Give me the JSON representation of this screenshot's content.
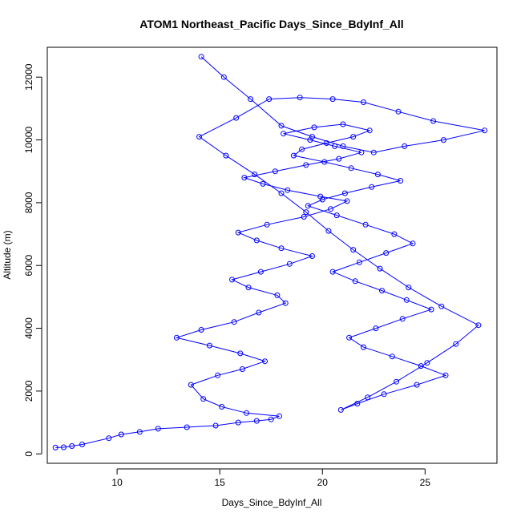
{
  "chart_data": {
    "type": "line",
    "title": "ATOM1 Northeast_Pacific Days_Since_BdyInf_All",
    "xlabel": "Days_Since_BdyInf_All",
    "ylabel": "Altitude (m)",
    "xlim": [
      6.6,
      28.5
    ],
    "ylim": [
      -300,
      12950
    ],
    "xticks": [
      10,
      15,
      20,
      25
    ],
    "yticks": [
      0,
      2000,
      4000,
      6000,
      8000,
      10000,
      12000
    ],
    "grid": false,
    "legend": "none",
    "marker": "open-circle",
    "color": "#0000ff",
    "series": [
      {
        "x": [
          7.0,
          7.4,
          7.8,
          8.3,
          9.6,
          10.2,
          11.1,
          12.0,
          13.4,
          14.8,
          15.9,
          16.8,
          17.5,
          17.9,
          16.3,
          15.1,
          14.2,
          13.6,
          14.9,
          16.1,
          17.2,
          16.0,
          14.5,
          12.9,
          14.1,
          15.7,
          16.9,
          18.2,
          17.8,
          16.4,
          15.6,
          17.0,
          18.4,
          19.5,
          18.0,
          16.8,
          15.9,
          17.3,
          19.1,
          20.4,
          21.2,
          19.9,
          18.3,
          17.1,
          16.2,
          17.7,
          19.2,
          20.8,
          21.9,
          20.6,
          19.4,
          18.1,
          19.6,
          21.0,
          22.3,
          21.5,
          20.2,
          19.0,
          18.6,
          20.1,
          21.4,
          22.7,
          23.8,
          22.4,
          21.1,
          20.0,
          19.3,
          20.7,
          22.1,
          23.5,
          24.4,
          23.1,
          21.8,
          20.5,
          21.6,
          22.9,
          24.1,
          25.3,
          23.9,
          22.6,
          21.3,
          22.0,
          23.4,
          24.8,
          26.0,
          24.6,
          23.0,
          21.7,
          20.9,
          22.2,
          23.6,
          25.1,
          26.5,
          27.6,
          25.8,
          24.2,
          22.8,
          21.5,
          20.3,
          19.2,
          18.0,
          16.7,
          15.3,
          14.0,
          15.8,
          17.4,
          18.9,
          20.5,
          22.0,
          23.7,
          25.4,
          27.9,
          25.9,
          24.0,
          22.5,
          21.0,
          19.5,
          18.0,
          16.5,
          15.2,
          14.1
        ],
        "y": [
          200,
          210,
          250,
          300,
          500,
          620,
          700,
          800,
          850,
          900,
          1000,
          1050,
          1100,
          1200,
          1300,
          1500,
          1750,
          2200,
          2500,
          2700,
          2950,
          3200,
          3450,
          3700,
          3950,
          4200,
          4500,
          4800,
          5050,
          5300,
          5550,
          5800,
          6050,
          6300,
          6550,
          6800,
          7050,
          7300,
          7550,
          7800,
          8050,
          8200,
          8400,
          8600,
          8800,
          9000,
          9200,
          9400,
          9600,
          9800,
          10000,
          10200,
          10400,
          10500,
          10300,
          10100,
          9900,
          9700,
          9500,
          9300,
          9100,
          8900,
          8700,
          8500,
          8300,
          8100,
          7900,
          7600,
          7300,
          7000,
          6700,
          6400,
          6100,
          5800,
          5500,
          5200,
          4900,
          4600,
          4300,
          4000,
          3700,
          3400,
          3100,
          2800,
          2500,
          2200,
          1900,
          1600,
          1400,
          1800,
          2300,
          2900,
          3500,
          4100,
          4700,
          5300,
          5900,
          6500,
          7100,
          7700,
          8300,
          8900,
          9500,
          10100,
          10700,
          11300,
          11350,
          11300,
          11200,
          10900,
          10600,
          10300,
          10000,
          9800,
          9600,
          9800,
          10100,
          10450,
          11300,
          12000,
          12650
        ]
      }
    ]
  }
}
